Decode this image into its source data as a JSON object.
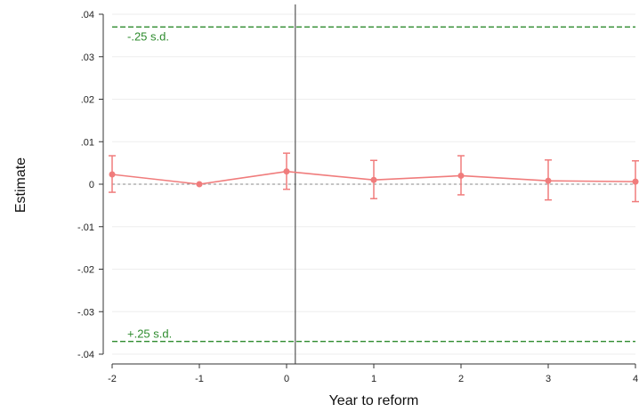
{
  "chart_data": {
    "type": "line",
    "xlabel": "Year to reform",
    "ylabel": "Estimate",
    "x": [
      -2,
      -1,
      0,
      1,
      2,
      3,
      4
    ],
    "xlim": [
      -2,
      4
    ],
    "ylim": [
      -0.04,
      0.04
    ],
    "x_ticks": [
      -2,
      -1,
      0,
      1,
      2,
      3,
      4
    ],
    "x_tick_labels": [
      "-2",
      "-1",
      "0",
      "1",
      "2",
      "3",
      "4"
    ],
    "y_ticks": [
      0.04,
      0.03,
      0.02,
      0.01,
      0,
      -0.01,
      -0.02,
      -0.03,
      -0.04
    ],
    "y_tick_labels": [
      ".04",
      ".03",
      ".02",
      ".01",
      "0",
      "-.01",
      "-.02",
      "-.03",
      "-.04"
    ],
    "grid": true,
    "series": [
      {
        "values": [
          0.0023,
          0.0,
          0.003,
          0.001,
          0.002,
          0.0008,
          0.0006
        ],
        "ci_low": [
          -0.0019,
          null,
          -0.0012,
          -0.0034,
          -0.0025,
          -0.0037,
          -0.0041
        ],
        "ci_high": [
          0.0067,
          null,
          0.0073,
          0.0056,
          0.0067,
          0.0057,
          0.0055
        ],
        "color": "#f07c7c"
      }
    ],
    "reference_lines": [
      {
        "y": 0.037,
        "label": "-.25 s.d.",
        "color": "#2e8b2e"
      },
      {
        "y": -0.037,
        "label": "+.25 s.d.",
        "color": "#2e8b2e"
      }
    ],
    "zero_line": {
      "y": 0,
      "color": "#888888"
    },
    "vertical_line": {
      "x": 0.1,
      "color": "#555555"
    }
  }
}
